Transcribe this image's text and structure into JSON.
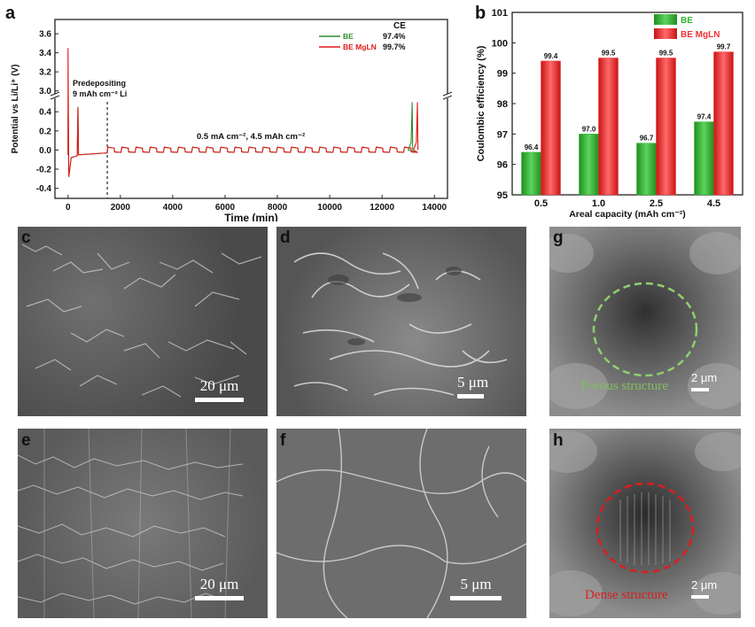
{
  "panel_labels": {
    "a": "a",
    "b": "b",
    "c": "c",
    "d": "d",
    "e": "e",
    "f": "f",
    "g": "g",
    "h": "h"
  },
  "chart_data": [
    {
      "type": "line",
      "panel": "a",
      "xlabel": "Time (min)",
      "ylabel": "Potential vs Li/Li⁺ (V)",
      "xlim": [
        -500,
        14500
      ],
      "xticks": [
        0,
        2000,
        4000,
        6000,
        8000,
        10000,
        12000,
        14000
      ],
      "yticks_lower": [
        -0.4,
        -0.2,
        0.0,
        0.2,
        0.4
      ],
      "yticks_upper": [
        3.0,
        3.2,
        3.4,
        3.6
      ],
      "axis_break": true,
      "legend_title": "CE",
      "legend": [
        {
          "name": "BE",
          "ce": "97.4%",
          "color": "#2e8b2e"
        },
        {
          "name": "BE MgLN",
          "ce": "99.7%",
          "color": "#e01b1b"
        }
      ],
      "annotations": {
        "predeposit_line1": "Predepositing",
        "predeposit_line2": "9 mAh cm⁻² Li",
        "predeposit_x": 1500,
        "condition": "0.5 mA cm⁻², 4.5 mAh cm⁻²"
      },
      "series_end": {
        "BE": 13150,
        "BE MgLN": 13350
      },
      "plateau_mV": 20
    },
    {
      "type": "bar",
      "panel": "b",
      "xlabel": "Areal capacity (mAh cm⁻²)",
      "ylabel": "Coulombic efficiency (%)",
      "categories": [
        "0.5",
        "1.0",
        "2.5",
        "4.5"
      ],
      "ylim": [
        95,
        101
      ],
      "yticks": [
        95,
        96,
        97,
        98,
        99,
        100,
        101
      ],
      "legend": [
        "BE",
        "BE MgLN"
      ],
      "series": [
        {
          "name": "BE",
          "values": [
            96.4,
            97.0,
            96.7,
            97.4
          ],
          "labels": [
            "96.4",
            "97.0",
            "96.7",
            "97.4"
          ],
          "color": "#2fb52f"
        },
        {
          "name": "BE MgLN",
          "values": [
            99.4,
            99.5,
            99.5,
            99.7
          ],
          "labels": [
            "99.4",
            "99.5",
            "99.5",
            "99.7"
          ],
          "color": "#f23232"
        }
      ]
    }
  ],
  "sem": {
    "c": {
      "scale": "20 μm"
    },
    "d": {
      "scale": "5 μm"
    },
    "e": {
      "scale": "20 μm"
    },
    "f": {
      "scale": "5 μm"
    },
    "g": {
      "scale": "2 μm",
      "note": "Porous structure",
      "circle_color": "#8fcf6e"
    },
    "h": {
      "scale": "2 μm",
      "note": "Dense structure",
      "circle_color": "#e01b1b"
    }
  }
}
